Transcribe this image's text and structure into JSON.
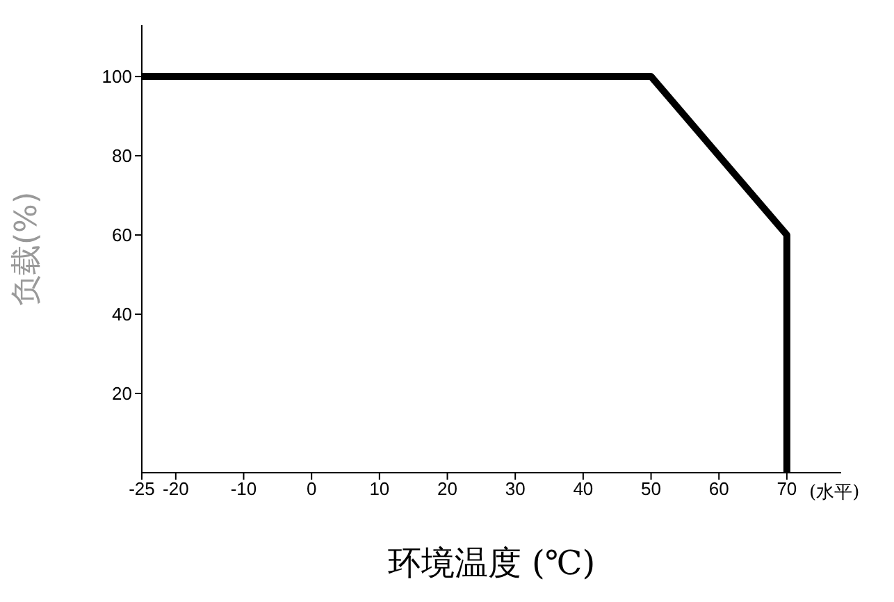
{
  "chart_data": {
    "type": "line",
    "xlabel": "环境温度 (℃)",
    "ylabel": "负载(%)",
    "annotations": [
      "(水平)"
    ],
    "x": [
      -25,
      50,
      70,
      70
    ],
    "series": [
      {
        "color": "#000000",
        "values": [
          100,
          100,
          60,
          0
        ]
      }
    ],
    "xlim": [
      -25,
      78
    ],
    "xticks": [
      -25,
      -20,
      -10,
      0,
      10,
      20,
      30,
      40,
      50,
      60,
      70
    ],
    "ylim": [
      0,
      113
    ],
    "yticks": [
      20,
      40,
      60,
      80,
      100
    ],
    "grid": false,
    "legend": false,
    "marker": "none",
    "line_style": "solid"
  }
}
